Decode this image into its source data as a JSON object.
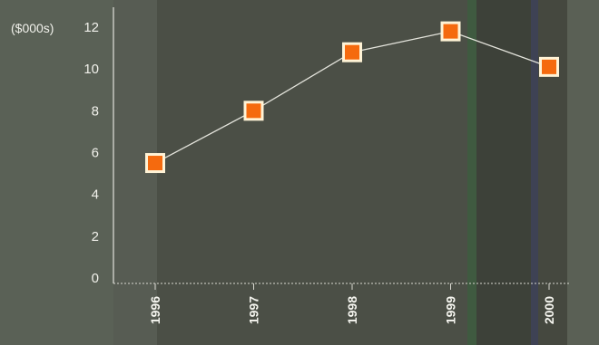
{
  "chart_data": {
    "type": "line",
    "title": "",
    "xlabel": "",
    "ylabel": "($000s)",
    "categories": [
      "1996",
      "1997",
      "1998",
      "1999",
      "2000"
    ],
    "series": [
      {
        "values": [
          5.5,
          8.0,
          10.8,
          11.8,
          10.1
        ]
      }
    ],
    "ylim": [
      0,
      12
    ],
    "yticks": [
      0,
      2,
      4,
      6,
      8,
      10,
      12
    ],
    "grid": false,
    "legend": "none",
    "colors": {
      "marker_fill": "#f56a0e",
      "marker_border": "#fff3d6",
      "line": "#e4e4dc",
      "axis": "#d8d8d0",
      "text": "#f0f0ea"
    }
  }
}
